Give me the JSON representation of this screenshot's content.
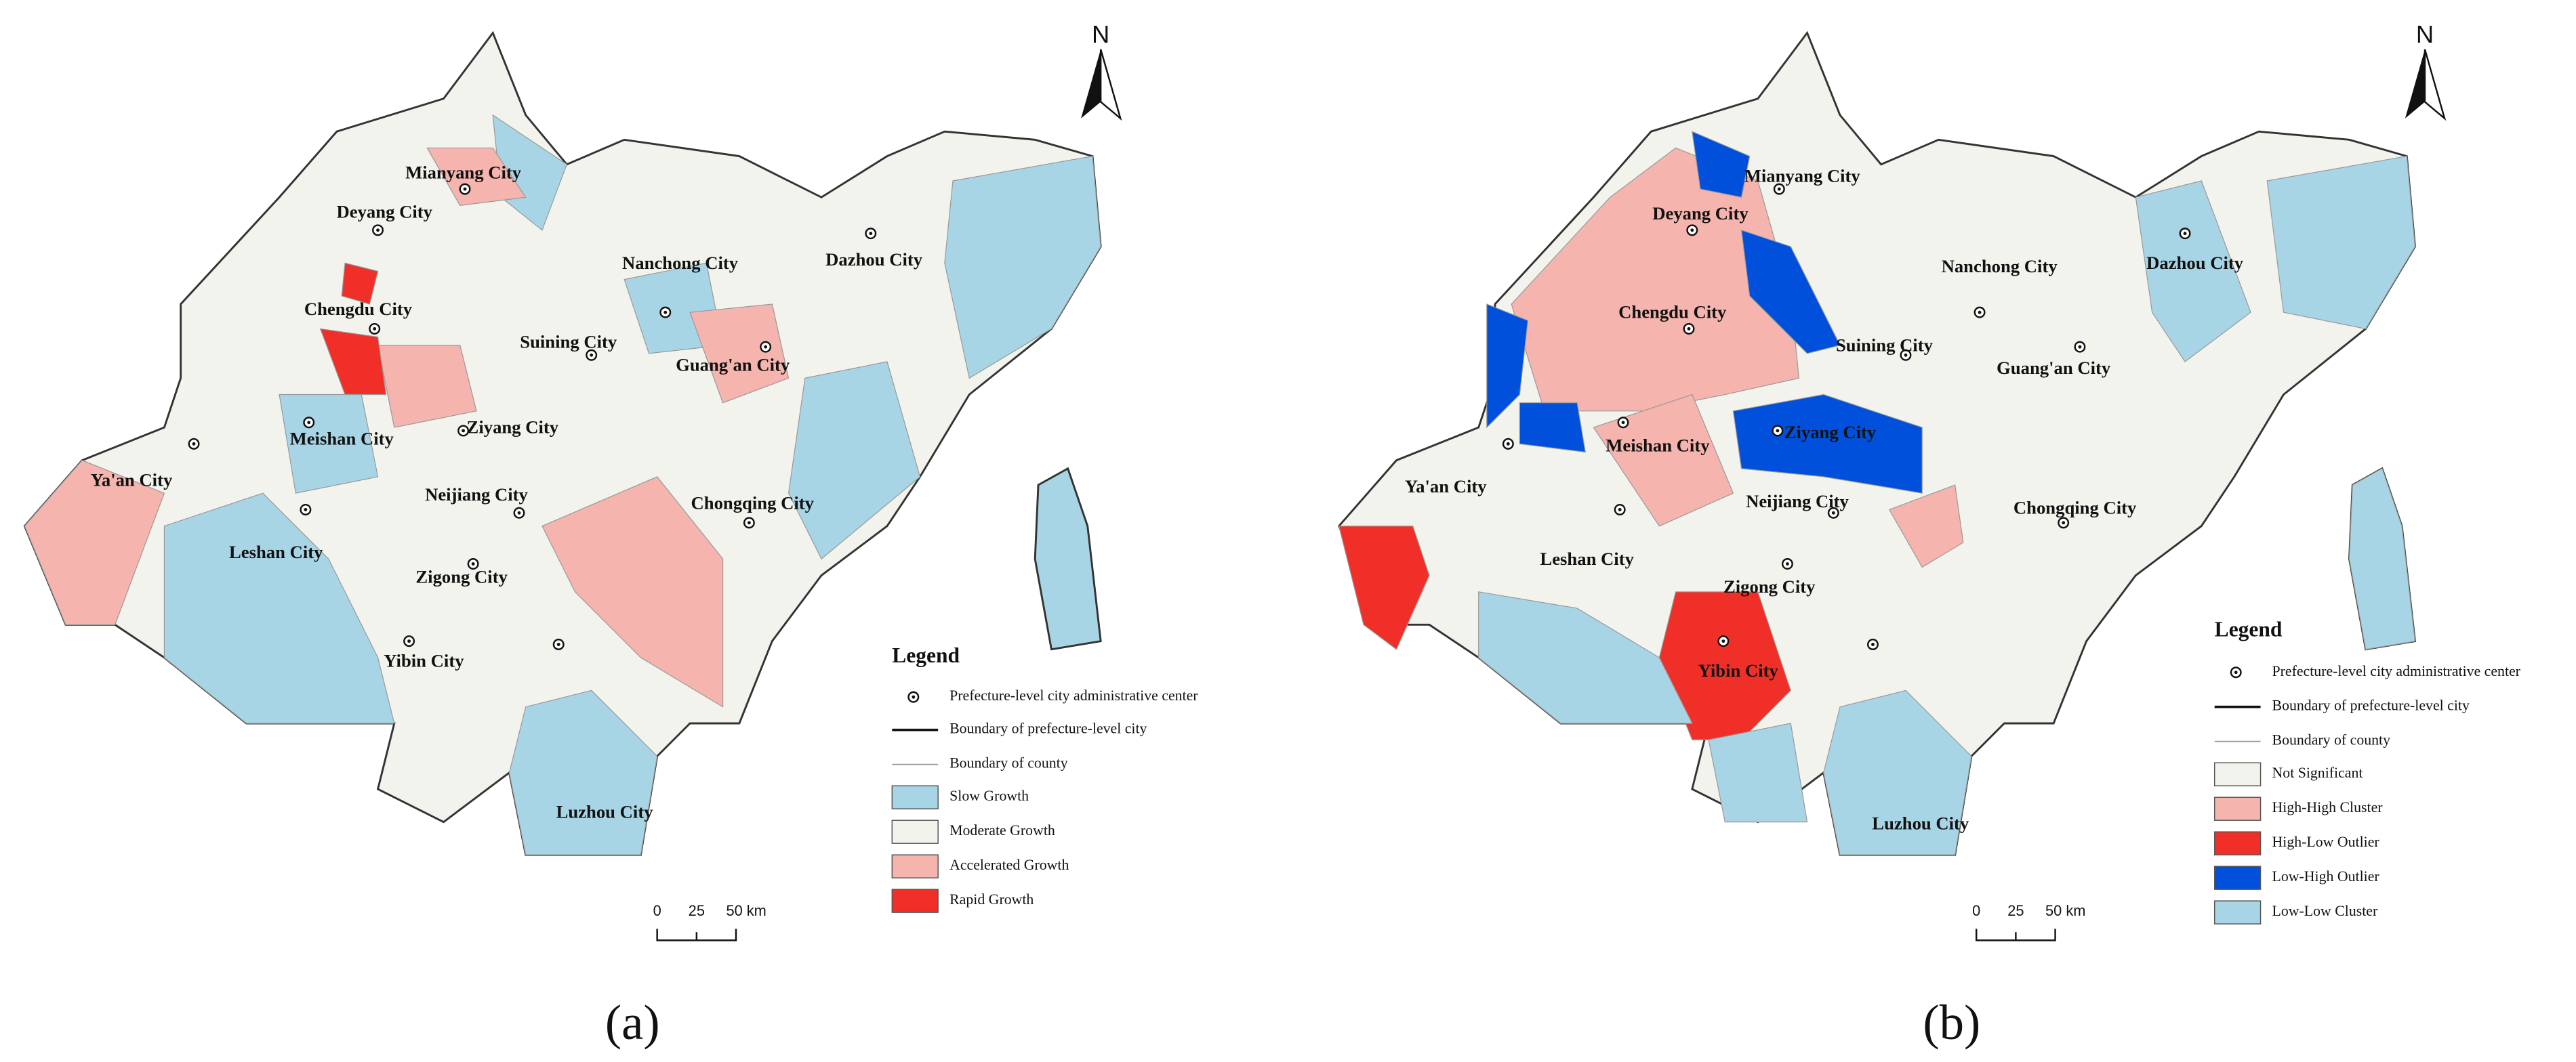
{
  "panels": [
    {
      "label": "(a)",
      "north": "N",
      "cities": [
        "Mianyang City",
        "Deyang City",
        "Chengdu City",
        "Nanchong City",
        "Dazhou City",
        "Suining City",
        "Guang'an City",
        "Meishan City",
        "Ziyang City",
        "Ya'an City",
        "Neijiang City",
        "Chongqing City",
        "Leshan City",
        "Zigong City",
        "Yibin City",
        "Luzhou City"
      ],
      "legend": {
        "title": "Legend",
        "items": [
          "Prefecture-level city administrative center",
          "Boundary of prefecture-level city",
          "Boundary of county",
          "Slow Growth",
          "Moderate Growth",
          "Accelerated Growth",
          "Rapid Growth"
        ]
      },
      "scale": [
        "0",
        "25",
        "50 km"
      ]
    },
    {
      "label": "(b)",
      "north": "N",
      "cities": [
        "Mianyang City",
        "Deyang City",
        "Chengdu City",
        "Nanchong City",
        "Dazhou City",
        "Suining City",
        "Guang'an City",
        "Meishan City",
        "Ziyang City",
        "Ya'an City",
        "Neijiang City",
        "Chongqing City",
        "Leshan City",
        "Zigong City",
        "Yibin City",
        "Luzhou City"
      ],
      "legend": {
        "title": "Legend",
        "items": [
          "Prefecture-level city administrative center",
          "Boundary of prefecture-level city",
          "Boundary of county",
          "Not Significant",
          "High-High Cluster",
          "High-Low Outlier",
          "Low-High Outlier",
          "Low-Low Cluster"
        ]
      },
      "scale": [
        "0",
        "25",
        "50 km"
      ]
    }
  ]
}
